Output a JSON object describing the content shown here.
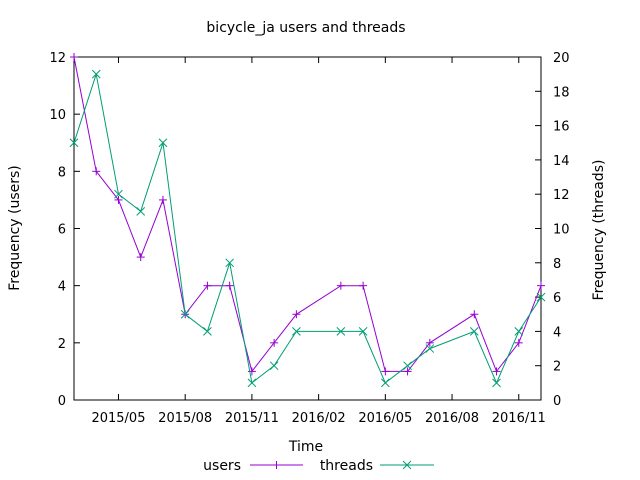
{
  "chart_data": {
    "type": "line",
    "title": "bicycle_ja users and threads",
    "xlabel": "Time",
    "ylabel_left": "Frequency (users)",
    "ylabel_right": "Frequency (threads)",
    "y_left_lim": [
      0,
      12
    ],
    "y_right_lim": [
      0,
      20
    ],
    "y_left_ticks": [
      0,
      2,
      4,
      6,
      8,
      10,
      12
    ],
    "y_right_ticks": [
      0,
      2,
      4,
      6,
      8,
      10,
      12,
      14,
      16,
      18,
      20
    ],
    "x_range": [
      "2015-03",
      "2016-12"
    ],
    "x_ticks": [
      {
        "label": "2015/05",
        "month": "2015-05"
      },
      {
        "label": "2015/08",
        "month": "2015-08"
      },
      {
        "label": "2015/11",
        "month": "2015-11"
      },
      {
        "label": "2016/02",
        "month": "2016-02"
      },
      {
        "label": "2016/05",
        "month": "2016-05"
      },
      {
        "label": "2016/08",
        "month": "2016-08"
      },
      {
        "label": "2016/11",
        "month": "2016-11"
      }
    ],
    "legend_position": "bottom",
    "grid": false,
    "series": [
      {
        "name": "users",
        "axis": "left",
        "color": "#9400d3",
        "marker": "plus",
        "points": [
          {
            "x": "2015-03",
            "y": 12
          },
          {
            "x": "2015-04",
            "y": 8
          },
          {
            "x": "2015-05",
            "y": 7
          },
          {
            "x": "2015-06",
            "y": 5
          },
          {
            "x": "2015-07",
            "y": 7
          },
          {
            "x": "2015-08",
            "y": 3
          },
          {
            "x": "2015-09",
            "y": 4
          },
          {
            "x": "2015-10",
            "y": 4
          },
          {
            "x": "2015-11",
            "y": 1
          },
          {
            "x": "2015-12",
            "y": 2
          },
          {
            "x": "2016-01",
            "y": 3
          },
          {
            "x": "2016-03",
            "y": 4
          },
          {
            "x": "2016-04",
            "y": 4
          },
          {
            "x": "2016-05",
            "y": 1
          },
          {
            "x": "2016-06",
            "y": 1
          },
          {
            "x": "2016-07",
            "y": 2
          },
          {
            "x": "2016-09",
            "y": 3
          },
          {
            "x": "2016-10",
            "y": 1
          },
          {
            "x": "2016-11",
            "y": 2
          },
          {
            "x": "2016-12",
            "y": 4
          }
        ]
      },
      {
        "name": "threads",
        "axis": "right",
        "color": "#009e73",
        "marker": "cross",
        "points": [
          {
            "x": "2015-03",
            "y": 15
          },
          {
            "x": "2015-04",
            "y": 19
          },
          {
            "x": "2015-05",
            "y": 12
          },
          {
            "x": "2015-06",
            "y": 11
          },
          {
            "x": "2015-07",
            "y": 15
          },
          {
            "x": "2015-08",
            "y": 5
          },
          {
            "x": "2015-09",
            "y": 4
          },
          {
            "x": "2015-10",
            "y": 8
          },
          {
            "x": "2015-11",
            "y": 1
          },
          {
            "x": "2015-12",
            "y": 2
          },
          {
            "x": "2016-01",
            "y": 4
          },
          {
            "x": "2016-03",
            "y": 4
          },
          {
            "x": "2016-04",
            "y": 4
          },
          {
            "x": "2016-05",
            "y": 1
          },
          {
            "x": "2016-06",
            "y": 2
          },
          {
            "x": "2016-07",
            "y": 3
          },
          {
            "x": "2016-09",
            "y": 4
          },
          {
            "x": "2016-10",
            "y": 1
          },
          {
            "x": "2016-11",
            "y": 4
          },
          {
            "x": "2016-12",
            "y": 6
          }
        ]
      }
    ]
  }
}
